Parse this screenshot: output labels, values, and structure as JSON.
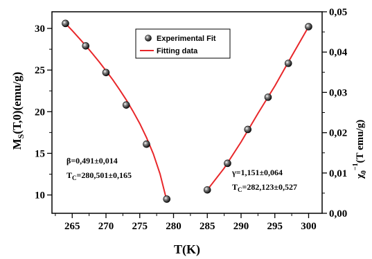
{
  "chart_data": {
    "type": "scatter",
    "x_axis": {
      "label": "T(K)",
      "range": [
        262,
        302
      ],
      "ticks": [
        265,
        270,
        275,
        280,
        285,
        290,
        295,
        300
      ]
    },
    "y_left_axis": {
      "label_main": "M",
      "label_sub": "S",
      "label_rest": "(T,0)(emu/g)",
      "range": [
        7.8,
        32
      ],
      "ticks": [
        10,
        15,
        20,
        25,
        30
      ]
    },
    "y_right_axis": {
      "label_main": "χ",
      "label_sub": "0",
      "label_sup": "−1",
      "label_rest": "(T emu/g)",
      "range": [
        0.0,
        0.05
      ],
      "ticks": [
        "0,00",
        "0,01",
        "0,02",
        "0,03",
        "0,04",
        "0,05"
      ],
      "tick_values": [
        0.0,
        0.01,
        0.02,
        0.03,
        0.04,
        0.05
      ]
    },
    "legend": {
      "placement": "top-center",
      "items": [
        {
          "label": "Experimental Fit",
          "marker": "sphere",
          "color": "#000000"
        },
        {
          "label": "Fitting data",
          "marker": "line",
          "color": "#e8272a"
        }
      ]
    },
    "series": [
      {
        "name": "Experimental Fit",
        "axis": "left",
        "x": [
          264,
          267,
          270,
          273,
          276,
          279
        ],
        "y": [
          30.6,
          27.9,
          24.7,
          20.8,
          16.1,
          9.5
        ]
      },
      {
        "name": "Fitting data",
        "axis": "left",
        "x": [
          264,
          265,
          266,
          267,
          268,
          269,
          270,
          271,
          272,
          273,
          274,
          275,
          276,
          277,
          278,
          279
        ],
        "y": [
          30.6,
          29.74,
          28.85,
          27.93,
          26.97,
          25.97,
          24.92,
          23.83,
          22.66,
          21.41,
          20.05,
          18.57,
          16.89,
          14.94,
          12.54,
          9.3
        ]
      },
      {
        "name": "Experimental Fit",
        "axis": "right",
        "x": [
          285,
          288,
          291,
          294,
          297,
          300
        ],
        "y": [
          0.0058,
          0.0124,
          0.0208,
          0.0288,
          0.0372,
          0.0463
        ]
      },
      {
        "name": "Fitting data",
        "axis": "right",
        "x": [
          285,
          287.5,
          290,
          292.5,
          295,
          297.5,
          300
        ],
        "y": [
          0.0058,
          0.0112,
          0.0177,
          0.0248,
          0.0316,
          0.039,
          0.0463
        ]
      }
    ],
    "annotations": [
      {
        "id": "beta",
        "line1": "β=0,491±0,014",
        "line2_main": "T",
        "line2_sub": "C",
        "line2_rest": "=280,501±0,165"
      },
      {
        "id": "gamma",
        "line1": "γ=1,151±0,064",
        "line2_main": "T",
        "line2_sub": "C",
        "line2_rest": "=282,123±0,527"
      }
    ],
    "grid": false
  }
}
